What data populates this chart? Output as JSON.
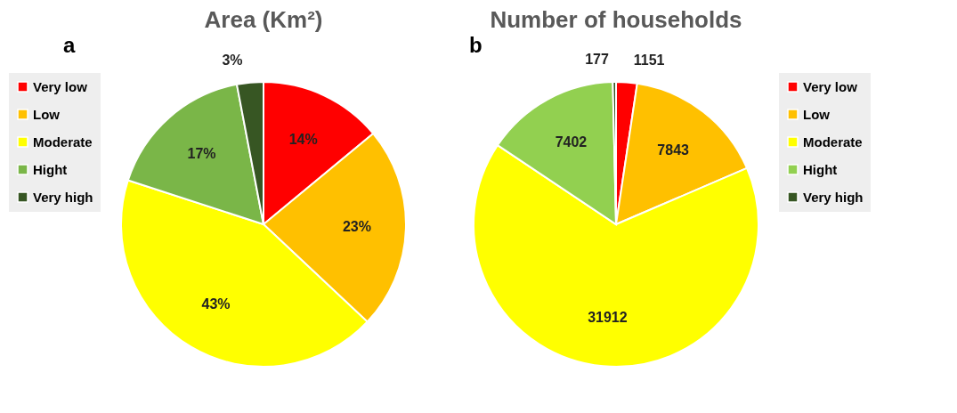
{
  "chart_data": [
    {
      "type": "pie",
      "title": "Area (Km²)",
      "annotations": [
        "a"
      ],
      "categories": [
        "Very low",
        "Low",
        "Moderate",
        "Hight",
        "Very high"
      ],
      "values": [
        14,
        23,
        43,
        17,
        3
      ],
      "value_labels": [
        "14%",
        "23%",
        "43%",
        "17%",
        "3%"
      ],
      "colors": [
        "#ff0000",
        "#ffc000",
        "#ffff00",
        "#7ab648",
        "#375623"
      ],
      "legend": "left"
    },
    {
      "type": "pie",
      "title": "Number of households",
      "annotations": [
        "b"
      ],
      "categories": [
        "Very low",
        "Low",
        "Moderate",
        "Hight",
        "Very high"
      ],
      "values": [
        1151,
        7843,
        31912,
        7402,
        177
      ],
      "data_labels": true,
      "colors": [
        "#ff0000",
        "#ffc000",
        "#ffff00",
        "#92d050",
        "#375623"
      ],
      "legend": "right"
    }
  ]
}
